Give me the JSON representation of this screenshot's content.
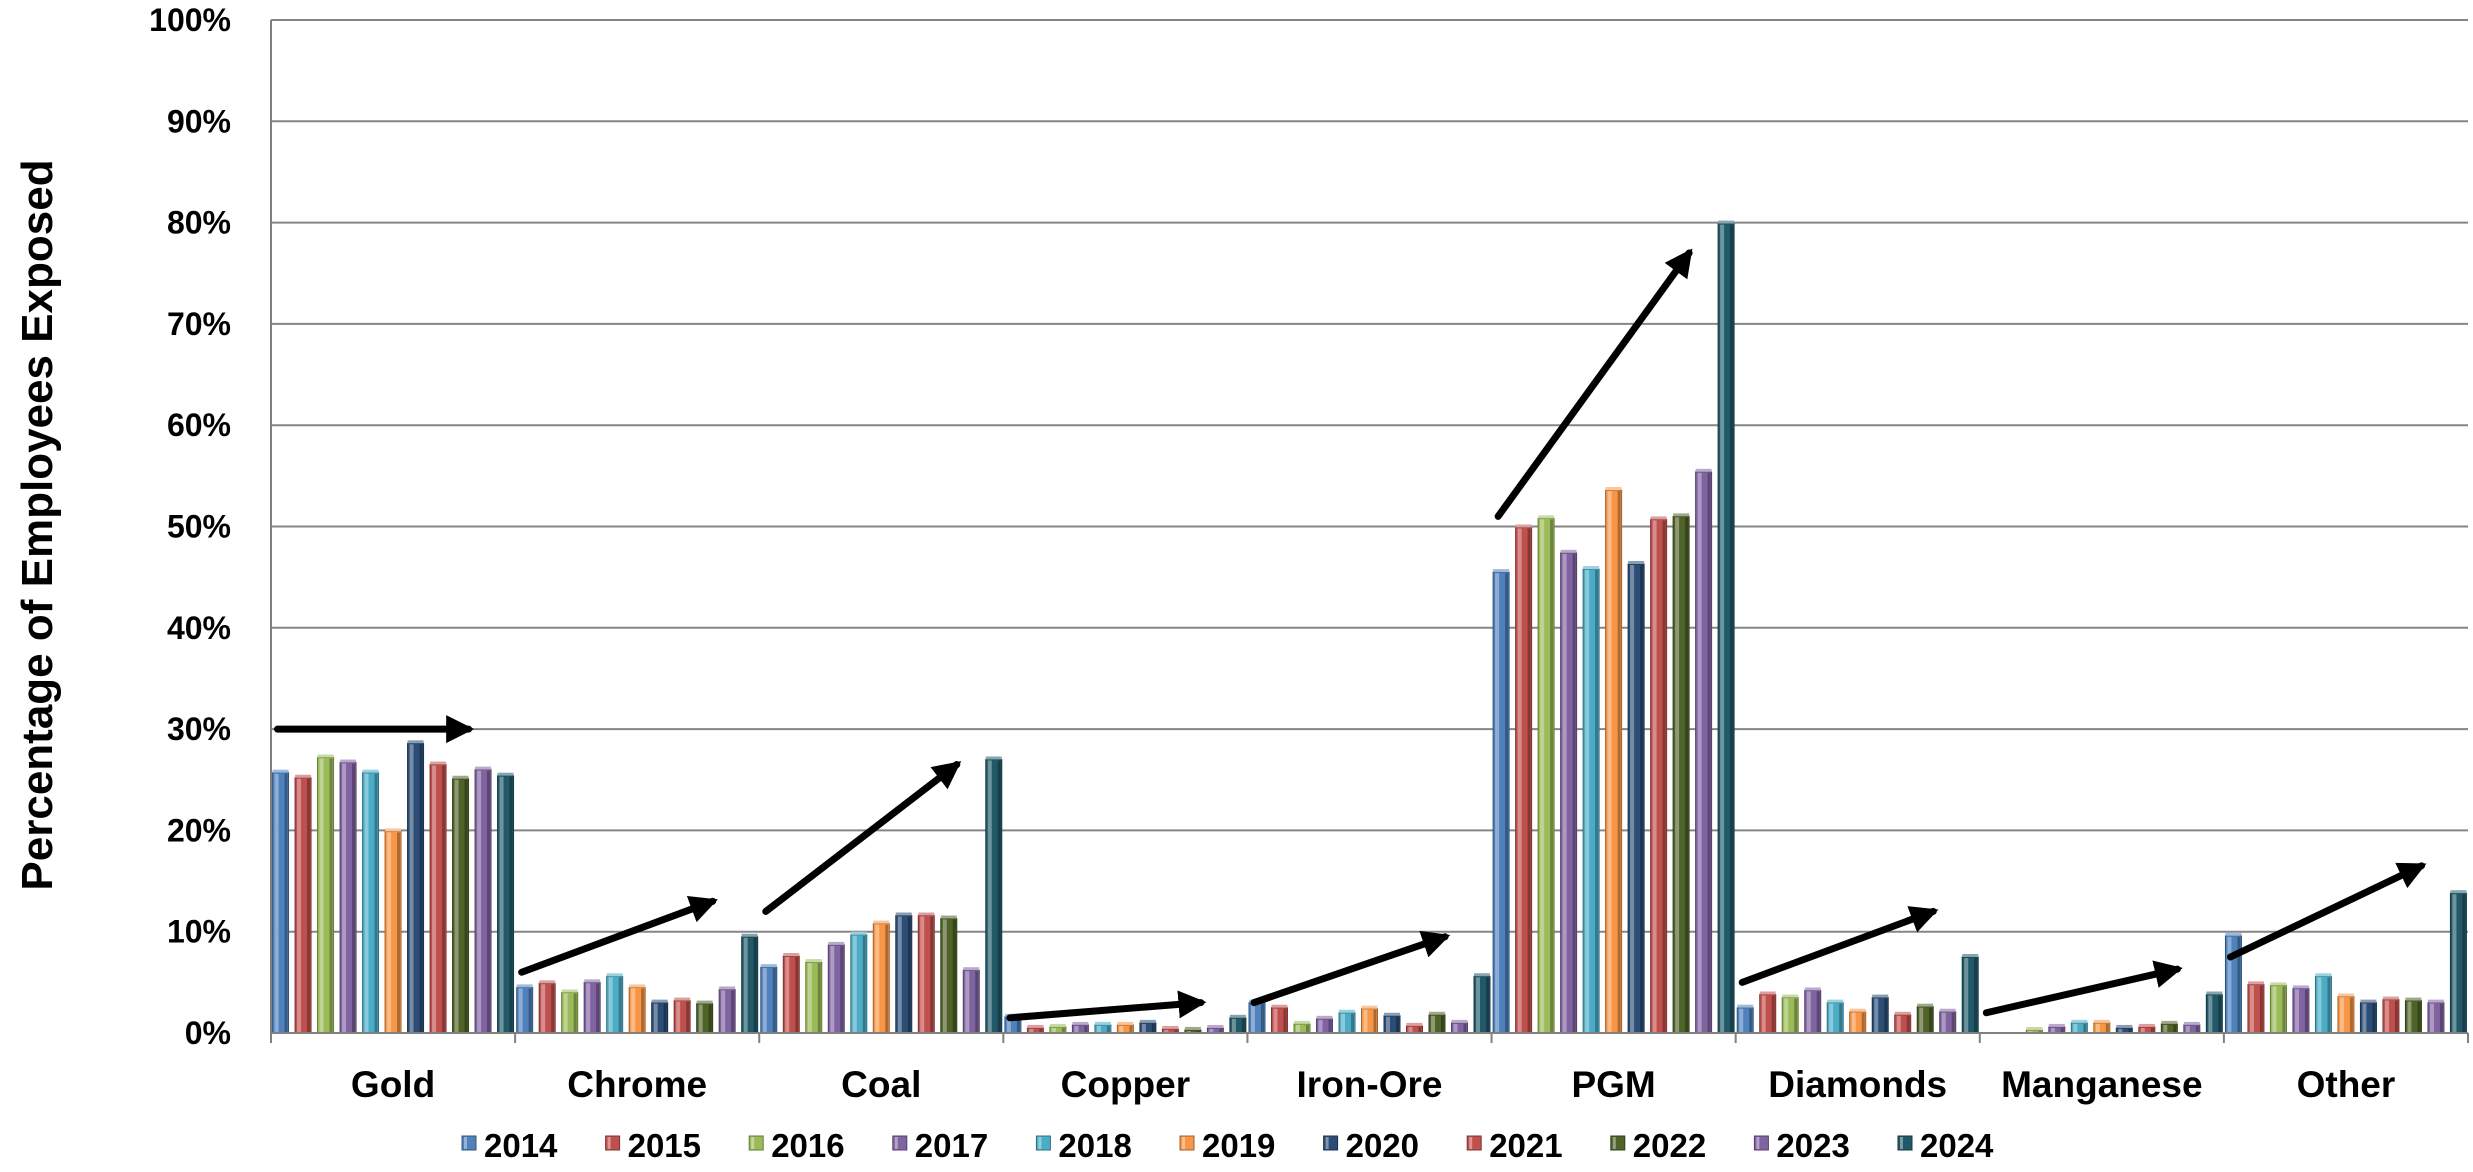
{
  "chart_data": {
    "type": "bar",
    "title": "",
    "xlabel": "",
    "ylabel": "Percentage of Employees Exposed",
    "ylim": [
      0,
      100
    ],
    "y_ticks": [
      "0%",
      "10%",
      "20%",
      "30%",
      "40%",
      "50%",
      "60%",
      "70%",
      "80%",
      "90%",
      "100%"
    ],
    "grid": "horizontal",
    "legend_position": "bottom",
    "categories": [
      "Gold",
      "Chrome",
      "Coal",
      "Copper",
      "Iron-Ore",
      "PGM",
      "Diamonds",
      "Manganese",
      "Other"
    ],
    "series": [
      {
        "name": "2014",
        "color": "#4f81bd",
        "values": [
          25.7,
          4.5,
          6.5,
          1.6,
          3.0,
          45.5,
          2.5,
          0.0,
          9.6
        ]
      },
      {
        "name": "2015",
        "color": "#c0504d",
        "values": [
          25.2,
          4.9,
          7.6,
          0.5,
          2.5,
          49.9,
          3.8,
          0.0,
          4.8
        ]
      },
      {
        "name": "2016",
        "color": "#9bbb59",
        "values": [
          27.2,
          4.0,
          7.0,
          0.6,
          0.9,
          50.8,
          3.5,
          0.3,
          4.7
        ]
      },
      {
        "name": "2017",
        "color": "#8064a2",
        "values": [
          26.7,
          5.0,
          8.7,
          0.8,
          1.4,
          47.4,
          4.2,
          0.6,
          4.4
        ]
      },
      {
        "name": "2018",
        "color": "#4bacc6",
        "values": [
          25.7,
          5.6,
          9.7,
          0.8,
          2.0,
          45.8,
          3.0,
          1.0,
          5.6
        ]
      },
      {
        "name": "2019",
        "color": "#f79646",
        "values": [
          19.9,
          4.5,
          10.8,
          0.8,
          2.4,
          53.6,
          2.1,
          1.0,
          3.6
        ]
      },
      {
        "name": "2020",
        "color": "#2c4d75",
        "values": [
          28.6,
          3.0,
          11.6,
          1.0,
          1.7,
          46.3,
          3.5,
          0.5,
          3.0
        ]
      },
      {
        "name": "2021",
        "color": "#c0504d",
        "values": [
          26.5,
          3.2,
          11.6,
          0.4,
          0.7,
          50.7,
          1.8,
          0.6,
          3.3
        ]
      },
      {
        "name": "2022",
        "color": "#4f6228",
        "values": [
          25.1,
          2.9,
          11.3,
          0.3,
          1.8,
          51.0,
          2.6,
          0.9,
          3.2
        ]
      },
      {
        "name": "2023",
        "color": "#8064a2",
        "values": [
          26.0,
          4.3,
          6.2,
          0.5,
          1.0,
          55.4,
          2.1,
          0.8,
          3.0
        ]
      },
      {
        "name": "2024",
        "color": "#215968",
        "values": [
          25.4,
          9.5,
          27.0,
          1.5,
          5.6,
          79.9,
          7.5,
          3.8,
          13.8
        ]
      }
    ],
    "trend_arrows": [
      {
        "category": "Gold",
        "from": 30.0,
        "to": 30.0
      },
      {
        "category": "Chrome",
        "from": 6.0,
        "to": 13.0
      },
      {
        "category": "Coal",
        "from": 12.0,
        "to": 26.5
      },
      {
        "category": "Copper",
        "from": 1.5,
        "to": 3.0
      },
      {
        "category": "Iron-Ore",
        "from": 3.0,
        "to": 9.5
      },
      {
        "category": "PGM",
        "from": 51.0,
        "to": 77.0
      },
      {
        "category": "Diamonds",
        "from": 5.0,
        "to": 12.0
      },
      {
        "category": "Manganese",
        "from": 2.0,
        "to": 6.3
      },
      {
        "category": "Other",
        "from": 7.5,
        "to": 16.5
      }
    ]
  }
}
